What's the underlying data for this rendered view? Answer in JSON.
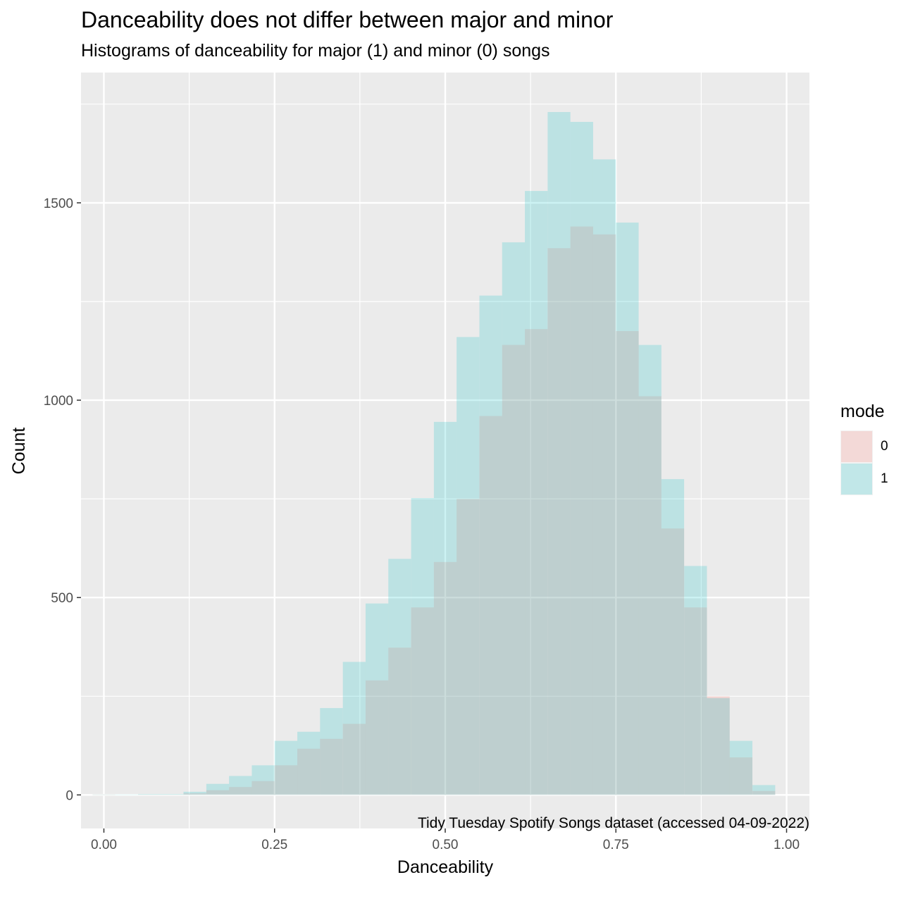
{
  "chart_data": {
    "type": "bar",
    "title": "Danceability does not differ between major and minor",
    "subtitle": "Histograms of danceability for major (1) and minor (0) songs",
    "caption": "Tidy Tuesday Spotify Songs dataset (accessed 04-09-2022)",
    "xlabel": "Danceability",
    "ylabel": "Count",
    "xlim": [
      -0.0335,
      1.0335
    ],
    "ylim": [
      -85,
      1830
    ],
    "xticks": [
      0.0,
      0.25,
      0.5,
      0.75,
      1.0
    ],
    "xtick_labels": [
      "0.00",
      "0.25",
      "0.50",
      "0.75",
      "1.00"
    ],
    "yticks": [
      0,
      500,
      1000,
      1500
    ],
    "ytick_labels": [
      "0",
      "500",
      "1000",
      "1500"
    ],
    "bin_width": 0.0333,
    "grid": true,
    "legend": {
      "title": "mode",
      "placement": "right"
    },
    "series": [
      {
        "name": "0",
        "color": "#F8766D",
        "bins": [
          {
            "x": 0.0,
            "y": 1
          },
          {
            "x": 0.0333,
            "y": 0
          },
          {
            "x": 0.0667,
            "y": 1
          },
          {
            "x": 0.1,
            "y": 1
          },
          {
            "x": 0.1333,
            "y": 4
          },
          {
            "x": 0.1667,
            "y": 12
          },
          {
            "x": 0.2,
            "y": 20
          },
          {
            "x": 0.2333,
            "y": 35
          },
          {
            "x": 0.2667,
            "y": 75
          },
          {
            "x": 0.3,
            "y": 117
          },
          {
            "x": 0.3333,
            "y": 142
          },
          {
            "x": 0.3667,
            "y": 180
          },
          {
            "x": 0.4,
            "y": 290
          },
          {
            "x": 0.4333,
            "y": 373
          },
          {
            "x": 0.4667,
            "y": 475
          },
          {
            "x": 0.5,
            "y": 590
          },
          {
            "x": 0.5333,
            "y": 750
          },
          {
            "x": 0.5667,
            "y": 960
          },
          {
            "x": 0.6,
            "y": 1140
          },
          {
            "x": 0.6333,
            "y": 1180
          },
          {
            "x": 0.6667,
            "y": 1385
          },
          {
            "x": 0.7,
            "y": 1440
          },
          {
            "x": 0.7333,
            "y": 1420
          },
          {
            "x": 0.7667,
            "y": 1175
          },
          {
            "x": 0.8,
            "y": 1010
          },
          {
            "x": 0.8333,
            "y": 675
          },
          {
            "x": 0.8667,
            "y": 475
          },
          {
            "x": 0.9,
            "y": 250
          },
          {
            "x": 0.9333,
            "y": 95
          },
          {
            "x": 0.9667,
            "y": 10
          }
        ]
      },
      {
        "name": "1",
        "color": "#00BFC4",
        "bins": [
          {
            "x": 0.0,
            "y": 1
          },
          {
            "x": 0.0333,
            "y": 1
          },
          {
            "x": 0.0667,
            "y": 2
          },
          {
            "x": 0.1,
            "y": 2
          },
          {
            "x": 0.1333,
            "y": 8
          },
          {
            "x": 0.1667,
            "y": 28
          },
          {
            "x": 0.2,
            "y": 48
          },
          {
            "x": 0.2333,
            "y": 75
          },
          {
            "x": 0.2667,
            "y": 137
          },
          {
            "x": 0.3,
            "y": 160
          },
          {
            "x": 0.3333,
            "y": 220
          },
          {
            "x": 0.3667,
            "y": 337
          },
          {
            "x": 0.4,
            "y": 485
          },
          {
            "x": 0.4333,
            "y": 598
          },
          {
            "x": 0.4667,
            "y": 752
          },
          {
            "x": 0.5,
            "y": 945
          },
          {
            "x": 0.5333,
            "y": 1160
          },
          {
            "x": 0.5667,
            "y": 1265
          },
          {
            "x": 0.6,
            "y": 1400
          },
          {
            "x": 0.6333,
            "y": 1530
          },
          {
            "x": 0.6667,
            "y": 1730
          },
          {
            "x": 0.7,
            "y": 1705
          },
          {
            "x": 0.7333,
            "y": 1610
          },
          {
            "x": 0.7667,
            "y": 1450
          },
          {
            "x": 0.8,
            "y": 1140
          },
          {
            "x": 0.8333,
            "y": 800
          },
          {
            "x": 0.8667,
            "y": 580
          },
          {
            "x": 0.9,
            "y": 245
          },
          {
            "x": 0.9333,
            "y": 137
          },
          {
            "x": 0.9667,
            "y": 25
          }
        ]
      }
    ]
  }
}
